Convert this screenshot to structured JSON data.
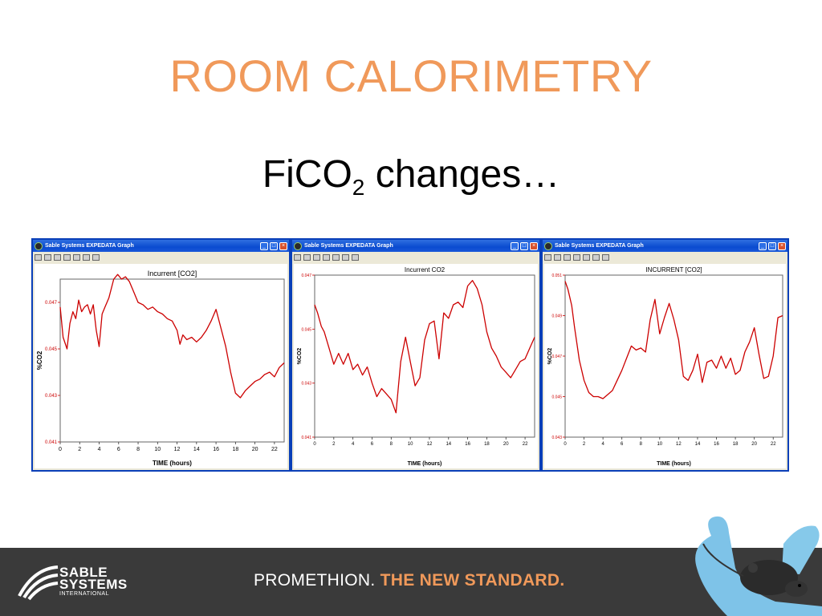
{
  "slide": {
    "title": "ROOM CALORIMETRY",
    "subtitle_main": "FiCO",
    "subtitle_sub": "2",
    "subtitle_tail": " changes…"
  },
  "colors": {
    "title": "#f0995a",
    "series": "#cc0000",
    "tagline_accent": "#f0995a",
    "footer": "#3a3a3a"
  },
  "windows": [
    {
      "title": "Sable Systems EXPEDATA Graph"
    },
    {
      "title": "Sable Systems EXPEDATA Graph"
    },
    {
      "title": "Sable Systems EXPEDATA Graph"
    }
  ],
  "chart_data": [
    {
      "type": "line",
      "title": "Incurrent [CO2]",
      "xlabel": "TIME (hours)",
      "ylabel": "%CO2",
      "xlim": [
        0,
        23
      ],
      "ylim": [
        0.041,
        0.048
      ],
      "xticks": [
        "0",
        "2",
        "4",
        "6",
        "8",
        "10",
        "12",
        "14",
        "16",
        "18",
        "20",
        "22"
      ],
      "yticks": [
        "0.041",
        "0.043",
        "0.045",
        "0.047"
      ],
      "yticks_values": [
        0.041,
        0.043,
        0.045,
        0.047
      ],
      "series": [
        {
          "x": [
            0,
            0.3,
            0.7,
            1,
            1.3,
            1.6,
            1.9,
            2.2,
            2.5,
            2.8,
            3.1,
            3.4,
            3.7,
            4,
            4.3,
            4.6,
            5,
            5.5,
            5.9,
            6.3,
            6.7,
            7.1,
            7.5,
            8,
            8.5,
            9,
            9.5,
            10,
            10.5,
            11,
            11.5,
            12,
            12.3,
            12.6,
            13,
            13.5,
            14,
            14.5,
            15,
            15.5,
            16,
            16.5,
            17,
            17.5,
            18,
            18.5,
            19,
            19.5,
            20,
            20.5,
            21,
            21.5,
            22,
            22.5,
            23
          ],
          "y": [
            0.0468,
            0.0455,
            0.045,
            0.0461,
            0.0466,
            0.0463,
            0.0471,
            0.0466,
            0.0468,
            0.0469,
            0.0465,
            0.0469,
            0.0458,
            0.0451,
            0.0465,
            0.0468,
            0.0472,
            0.048,
            0.0482,
            0.048,
            0.0481,
            0.0479,
            0.0475,
            0.047,
            0.0469,
            0.0467,
            0.0468,
            0.0466,
            0.0465,
            0.0463,
            0.0462,
            0.0458,
            0.0452,
            0.0456,
            0.0454,
            0.0455,
            0.0453,
            0.0455,
            0.0458,
            0.0462,
            0.0467,
            0.0459,
            0.0451,
            0.044,
            0.0431,
            0.0429,
            0.0432,
            0.0434,
            0.0436,
            0.0437,
            0.0439,
            0.044,
            0.0438,
            0.0442,
            0.0444
          ]
        }
      ]
    },
    {
      "type": "line",
      "title": "Incurrent CO2",
      "xlabel": "TIME (hours)",
      "ylabel": "%CO2",
      "xlim": [
        0,
        23
      ],
      "ylim": [
        0.041,
        0.047
      ],
      "xticks": [
        "0",
        "2",
        "4",
        "6",
        "8",
        "10",
        "12",
        "14",
        "16",
        "18",
        "20",
        "22"
      ],
      "yticks": [
        "0.041",
        "0.043",
        "0.045",
        "0.047"
      ],
      "yticks_values": [
        0.041,
        0.043,
        0.045,
        0.047
      ],
      "series": [
        {
          "x": [
            0,
            0.3,
            0.7,
            1,
            1.5,
            2,
            2.5,
            3,
            3.5,
            4,
            4.5,
            5,
            5.5,
            6,
            6.5,
            7,
            7.5,
            8,
            8.5,
            9,
            9.5,
            10,
            10.5,
            11,
            11.5,
            12,
            12.5,
            13,
            13.5,
            14,
            14.5,
            15,
            15.5,
            16,
            16.5,
            17,
            17.5,
            18,
            18.5,
            19,
            19.5,
            20,
            20.5,
            21,
            21.5,
            22,
            22.5,
            23
          ],
          "y": [
            0.0459,
            0.0456,
            0.0451,
            0.0449,
            0.0443,
            0.0437,
            0.0441,
            0.0437,
            0.0441,
            0.0435,
            0.0437,
            0.0433,
            0.0436,
            0.043,
            0.0425,
            0.0428,
            0.0426,
            0.0424,
            0.0419,
            0.0438,
            0.0447,
            0.0438,
            0.0429,
            0.0432,
            0.0446,
            0.0452,
            0.0453,
            0.0439,
            0.0456,
            0.0454,
            0.0459,
            0.046,
            0.0458,
            0.0466,
            0.0468,
            0.0465,
            0.0459,
            0.0449,
            0.0443,
            0.044,
            0.0436,
            0.0434,
            0.0432,
            0.0435,
            0.0438,
            0.0439,
            0.0443,
            0.0447
          ]
        }
      ]
    },
    {
      "type": "line",
      "title": "INCURRENT [CO2]",
      "xlabel": "TIME (hours)",
      "ylabel": "%CO2",
      "xlim": [
        0,
        23
      ],
      "ylim": [
        0.043,
        0.051
      ],
      "xticks": [
        "0",
        "2",
        "4",
        "6",
        "8",
        "10",
        "12",
        "14",
        "16",
        "18",
        "20",
        "22"
      ],
      "yticks": [
        "0.043",
        "0.045",
        "0.047",
        "0.049",
        "0.051"
      ],
      "yticks_values": [
        0.043,
        0.045,
        0.047,
        0.049,
        0.051
      ],
      "series": [
        {
          "x": [
            0,
            0.3,
            0.7,
            1,
            1.5,
            2,
            2.5,
            3,
            3.5,
            4,
            4.5,
            5,
            5.5,
            6,
            6.5,
            7,
            7.5,
            8,
            8.5,
            9,
            9.5,
            10,
            10.5,
            11,
            11.5,
            12,
            12.5,
            13,
            13.5,
            14,
            14.5,
            15,
            15.5,
            16,
            16.5,
            17,
            17.5,
            18,
            18.5,
            19,
            19.5,
            20,
            20.5,
            21,
            21.5,
            22,
            22.5,
            23
          ],
          "y": [
            0.0507,
            0.0503,
            0.0495,
            0.0484,
            0.0468,
            0.0458,
            0.0452,
            0.045,
            0.045,
            0.0449,
            0.0451,
            0.0453,
            0.0458,
            0.0463,
            0.0469,
            0.0475,
            0.0473,
            0.0474,
            0.0472,
            0.0488,
            0.0498,
            0.0481,
            0.0489,
            0.0496,
            0.0488,
            0.0478,
            0.046,
            0.0458,
            0.0463,
            0.0471,
            0.0457,
            0.0467,
            0.0468,
            0.0464,
            0.047,
            0.0464,
            0.0469,
            0.0461,
            0.0463,
            0.0472,
            0.0477,
            0.0484,
            0.0471,
            0.0459,
            0.046,
            0.047,
            0.0489,
            0.049
          ]
        }
      ]
    }
  ],
  "footer": {
    "logo_line1": "SABLE",
    "logo_line2": "SYSTEMS",
    "logo_line3": "INTERNATIONAL",
    "tagline_part1": "PROMETHION.",
    "tagline_part2": " THE NEW STANDARD."
  }
}
